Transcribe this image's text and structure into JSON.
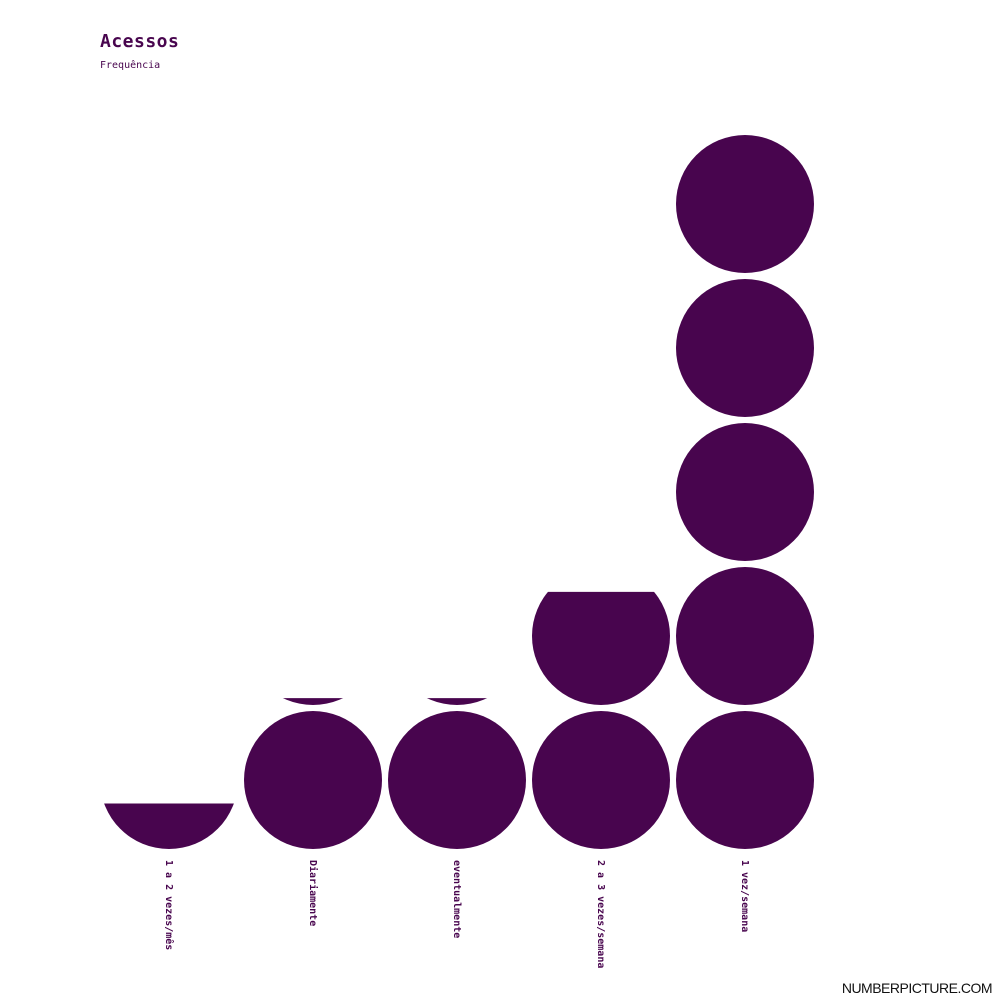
{
  "chart_data": {
    "type": "pictogram",
    "title": "Acessos",
    "subtitle": "Frequência",
    "categories": [
      "1 a 2 vezes/mês",
      "Diariamente",
      "eventualmente",
      "2 a 3 vezes/semana",
      "1 vez/semana"
    ],
    "values": [
      0.33,
      1.05,
      1.05,
      1.82,
      5.0
    ],
    "unit_per_icon": 1,
    "icon": "circle",
    "grid": false
  },
  "colors": {
    "icon": "#48054e",
    "text": "#48054e",
    "background": "#ffffff"
  },
  "watermark": "NUMBERPICTURE.COM"
}
